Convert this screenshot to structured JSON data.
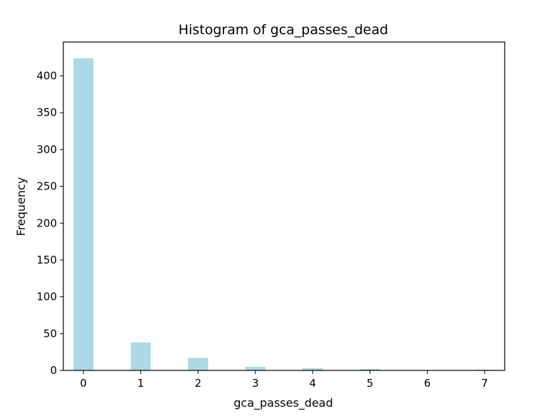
{
  "chart_data": {
    "type": "bar",
    "title": "Histogram of gca_passes_dead",
    "xlabel": "gca_passes_dead",
    "ylabel": "Frequency",
    "bar_color": "#add8e6",
    "x_ticks": [
      "0",
      "1",
      "2",
      "3",
      "4",
      "5",
      "6",
      "7"
    ],
    "y_ticks": [
      "0",
      "50",
      "100",
      "150",
      "200",
      "250",
      "300",
      "350",
      "400"
    ],
    "xlim": [
      -0.35,
      7.35
    ],
    "ylim": [
      0,
      446
    ],
    "bar_width": 0.35,
    "bars": [
      {
        "x": 0,
        "value": 424
      },
      {
        "x": 1,
        "value": 38
      },
      {
        "x": 2,
        "value": 17
      },
      {
        "x": 3,
        "value": 5
      },
      {
        "x": 4,
        "value": 3
      },
      {
        "x": 5,
        "value": 2
      },
      {
        "x": 7,
        "value": 1
      }
    ],
    "grid": false,
    "legend": "none"
  }
}
